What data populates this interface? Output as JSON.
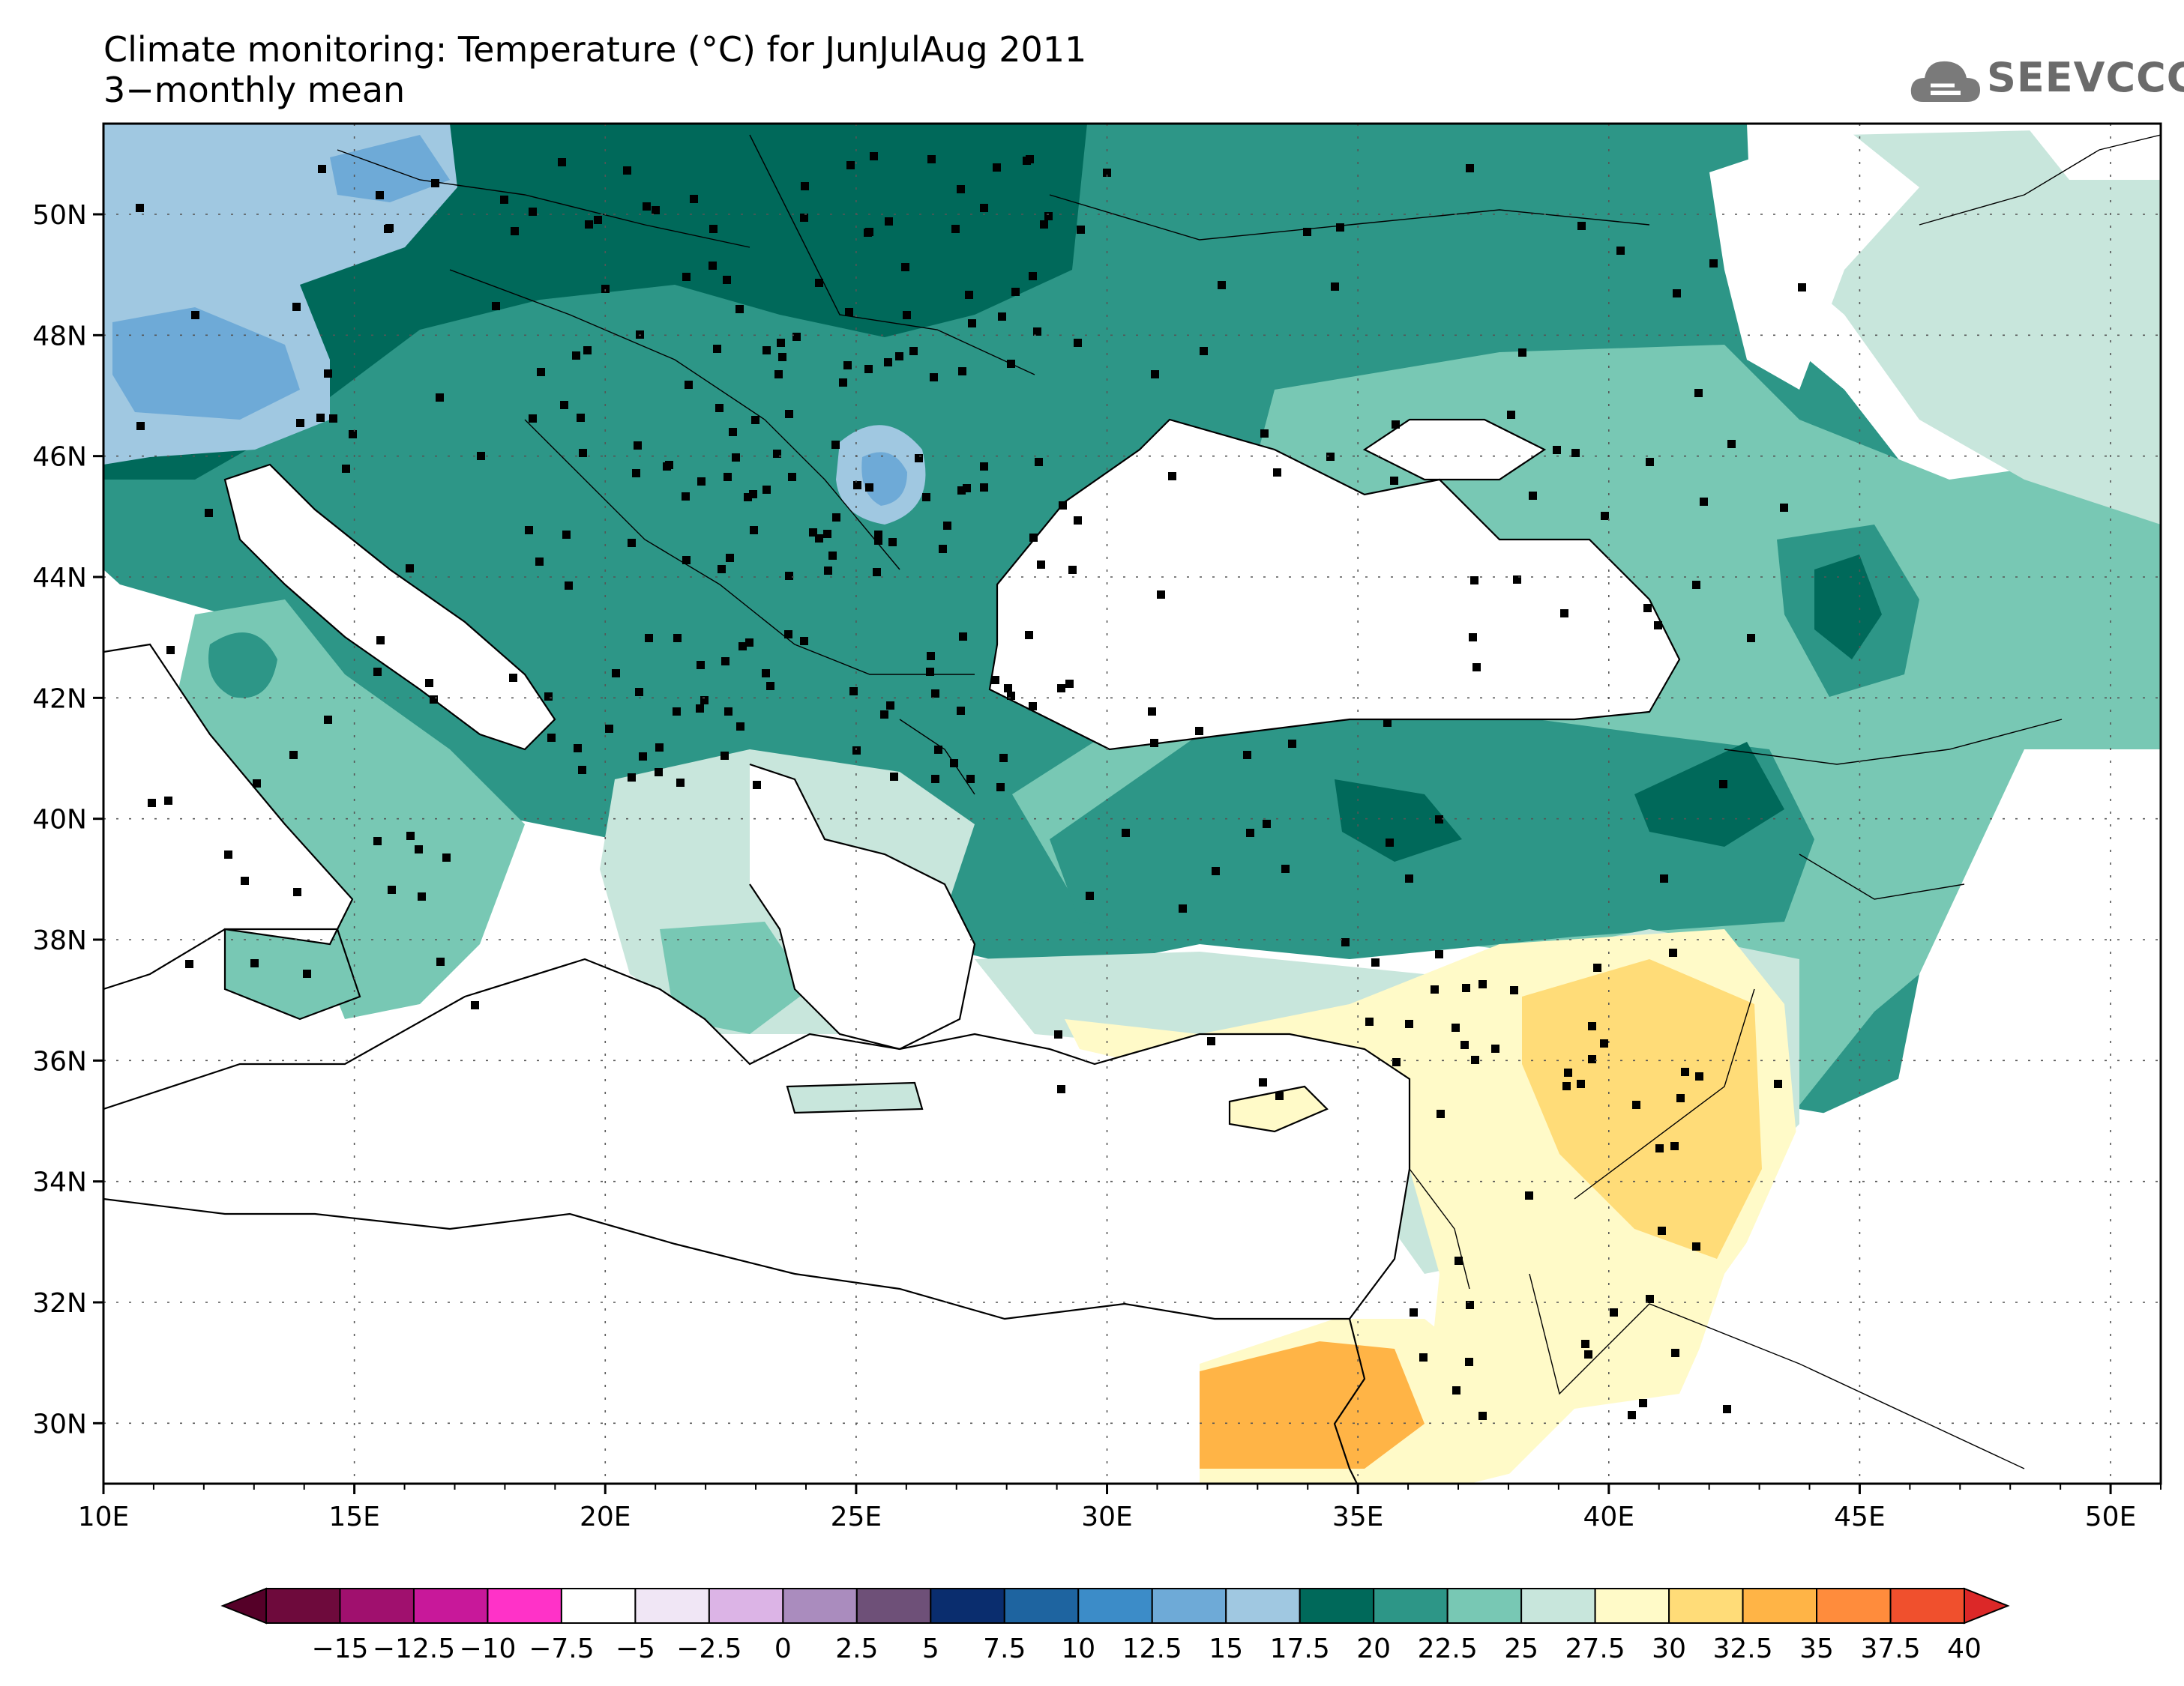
{
  "title": "Climate monitoring: Temperature (°C) for JunJulAug 2011",
  "subtitle": "3−monthly mean",
  "logo": {
    "text": "SEEVCCC",
    "icon": "cloud-icon"
  },
  "map": {
    "lon_range": [
      10,
      51
    ],
    "lat_range": [
      29,
      51.5
    ],
    "lon_ticks": [
      "10E",
      "15E",
      "20E",
      "25E",
      "30E",
      "35E",
      "40E",
      "45E",
      "50E"
    ],
    "lat_ticks": [
      "30N",
      "32N",
      "34N",
      "36N",
      "38N",
      "40N",
      "42N",
      "44N",
      "46N",
      "48N",
      "50N"
    ]
  },
  "colorbar": {
    "labels": [
      "−15",
      "−12.5",
      "−10",
      "−7.5",
      "−5",
      "−2.5",
      "0",
      "2.5",
      "5",
      "7.5",
      "10",
      "12.5",
      "15",
      "17.5",
      "20",
      "22.5",
      "25",
      "27.5",
      "30",
      "32.5",
      "35",
      "37.5",
      "40"
    ],
    "colors": [
      "#6e0a3c",
      "#a0106e",
      "#c8189a",
      "#ff32c8",
      "#ffffff",
      "#f0e6f5",
      "#dcb4e6",
      "#aa8cbe",
      "#6e5078",
      "#0a2d6e",
      "#1e64a0",
      "#3c8cc8",
      "#6eaad7",
      "#a0c8e1",
      "#00695a",
      "#2d9687",
      "#78c8b4",
      "#c8e6dc",
      "#fffac8",
      "#ffdc78",
      "#ffb446",
      "#ff8c3c",
      "#f0502d"
    ],
    "low_color": "#550028",
    "high_color": "#dc2828"
  }
}
